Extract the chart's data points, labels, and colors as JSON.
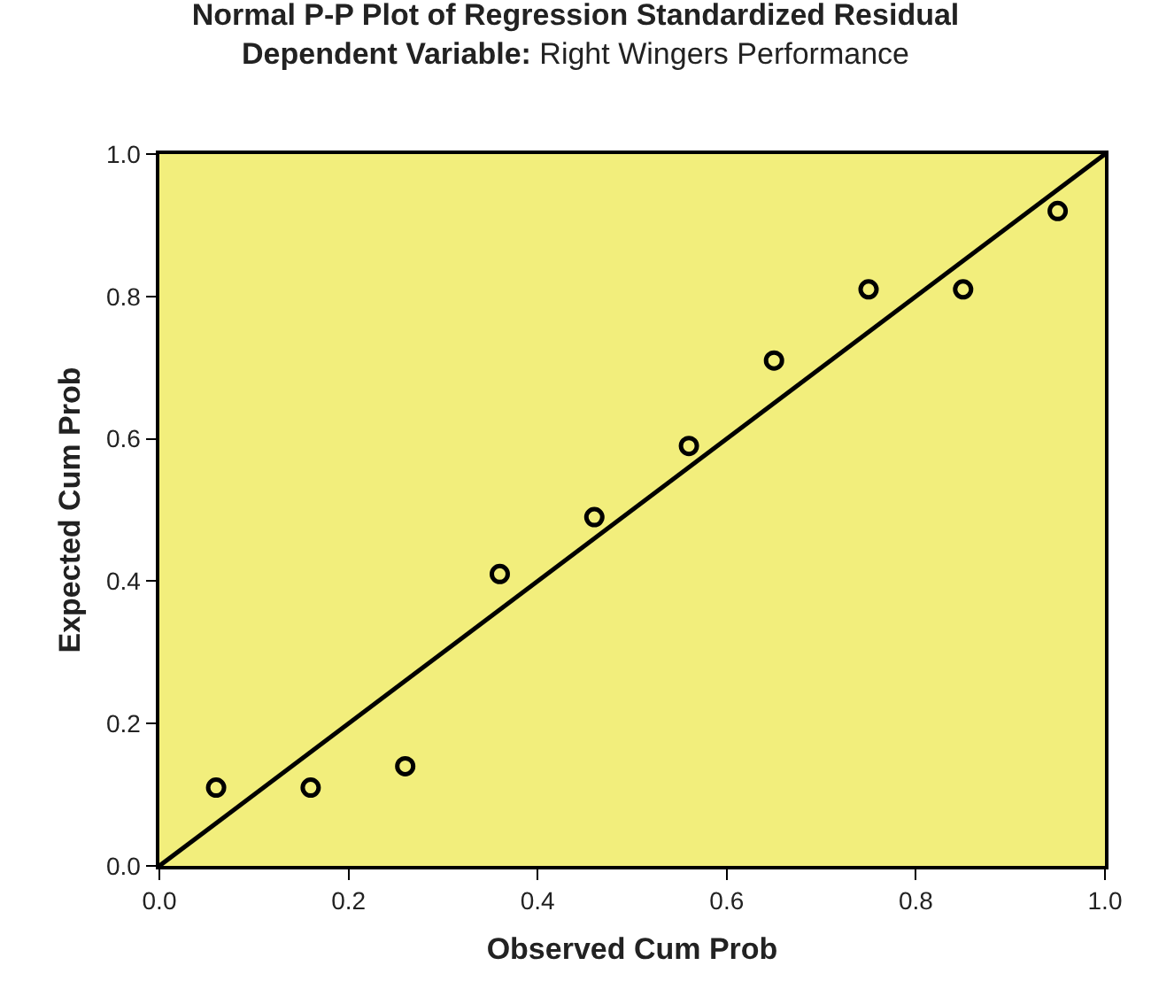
{
  "chart_data": {
    "type": "scatter",
    "title": "Normal P-P Plot of Regression Standardized Residual",
    "subtitle": "Dependent Variable: Right Wingers Performance",
    "xlabel": "Observed Cum Prob",
    "ylabel": "Expected Cum Prob",
    "x": [
      0.06,
      0.16,
      0.26,
      0.36,
      0.46,
      0.56,
      0.65,
      0.75,
      0.85,
      0.95
    ],
    "series": [
      {
        "type": "scatter",
        "color": "#000000",
        "marker": "circle",
        "values": [
          0.11,
          0.11,
          0.14,
          0.41,
          0.49,
          0.59,
          0.71,
          0.81,
          0.81,
          0.92
        ]
      },
      {
        "type": "line",
        "color": "#000000",
        "marker": "none",
        "x": [
          0,
          1
        ],
        "values": [
          0,
          1
        ]
      }
    ],
    "xlim": [
      0,
      1
    ],
    "ylim": [
      0,
      1
    ],
    "xticks": [
      {
        "value": 0,
        "label": "0.0"
      },
      {
        "value": 0.2,
        "label": "0.2"
      },
      {
        "value": 0.4,
        "label": "0.4"
      },
      {
        "value": 0.6,
        "label": "0.6"
      },
      {
        "value": 0.8,
        "label": "0.8"
      },
      {
        "value": 1,
        "label": "1.0"
      }
    ],
    "yticks": [
      {
        "value": 0,
        "label": "0.0"
      },
      {
        "value": 0.2,
        "label": "0.2"
      },
      {
        "value": 0.4,
        "label": "0.4"
      },
      {
        "value": 0.6,
        "label": "0.6"
      },
      {
        "value": 0.8,
        "label": "0.8"
      },
      {
        "value": 1,
        "label": "1.0"
      }
    ],
    "grid": false
  }
}
